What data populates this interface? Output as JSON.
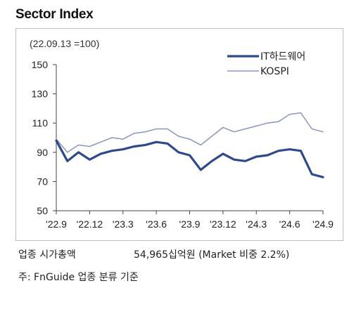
{
  "title": "Sector Index",
  "base_note": "(22.09.13 =100)",
  "footer": {
    "market_cap_label": "업종 시가총액",
    "market_cap_value": "54,965십억원 (Market 비중 2.2%)",
    "source": "주: FnGuide 업종 분류 기준"
  },
  "colors": {
    "it_hardware": "#2e4a8c",
    "kospi": "#8b95bf"
  },
  "chart_data": {
    "type": "line",
    "title": "Sector Index",
    "ylim": [
      50,
      150
    ],
    "yticks": [
      "150",
      "130",
      "110",
      "90",
      "70",
      "50"
    ],
    "xticks": [
      "'22.9",
      "'22.12",
      "'23.3",
      "'23.6",
      "'23.9",
      "'23.12",
      "'24.3",
      "'24.6",
      "'24.9"
    ],
    "legend_position": "top-right",
    "grid": false,
    "x": [
      "22.09",
      "22.10",
      "22.11",
      "22.12",
      "23.01",
      "23.02",
      "23.03",
      "23.04",
      "23.05",
      "23.06",
      "23.07",
      "23.08",
      "23.09",
      "23.10",
      "23.11",
      "23.12",
      "24.01",
      "24.02",
      "24.03",
      "24.04",
      "24.05",
      "24.06",
      "24.07",
      "24.08",
      "24.09"
    ],
    "series": [
      {
        "name": "IT하드웨어",
        "values": [
          98,
          84,
          90,
          85,
          89,
          91,
          92,
          94,
          95,
          97,
          96,
          90,
          88,
          78,
          84,
          89,
          85,
          84,
          87,
          88,
          91,
          92,
          91,
          75,
          73
        ]
      },
      {
        "name": "KOSPI",
        "values": [
          99,
          90,
          95,
          94,
          97,
          100,
          99,
          103,
          104,
          106,
          106,
          101,
          99,
          95,
          101,
          107,
          104,
          106,
          108,
          110,
          111,
          116,
          117,
          106,
          104
        ]
      }
    ]
  }
}
